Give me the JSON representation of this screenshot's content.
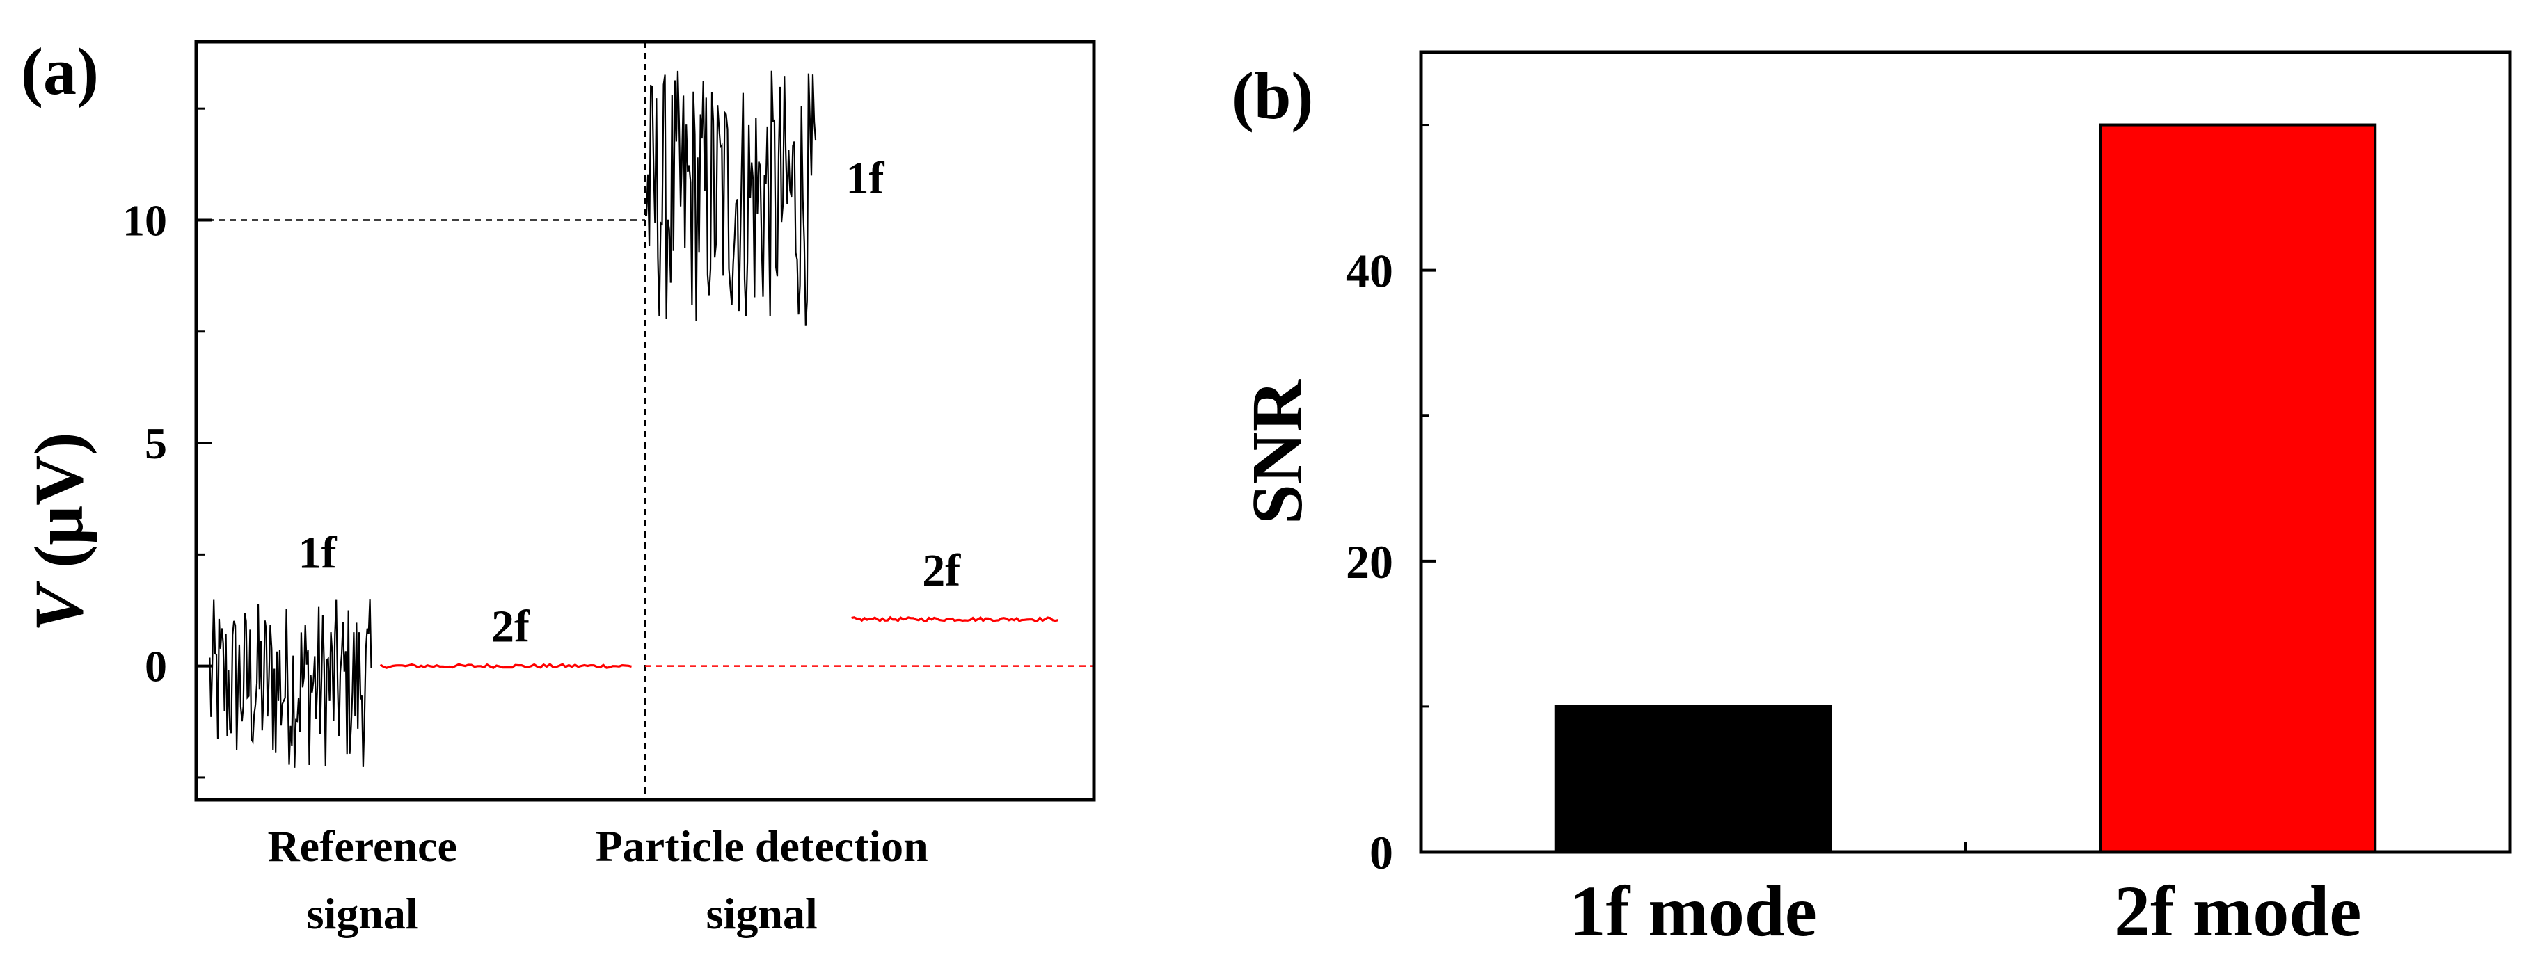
{
  "chart_data": [
    {
      "panel": "(a)",
      "type": "line",
      "ylabel_italic": "V",
      "ylabel_unit": " (μV)",
      "ylim": [
        -3,
        14
      ],
      "yticks": [
        0,
        5,
        10
      ],
      "ytick_labels": [
        "0",
        "5",
        "10"
      ],
      "xlim": [
        0,
        10
      ],
      "x_groups": [
        {
          "lines": [
            "Reference",
            "signal"
          ]
        },
        {
          "lines": [
            "Particle detection",
            "signal"
          ]
        }
      ],
      "series": [
        {
          "name": "1f",
          "color": "#000000",
          "x_range": [
            0.15,
            1.95
          ],
          "mean": -0.4,
          "amplitude": 1.9
        },
        {
          "name": "2f",
          "color": "#ff0000",
          "x_range": [
            2.05,
            4.85
          ],
          "mean": 0.0,
          "amplitude": 0.04
        },
        {
          "name": "1f",
          "color": "#000000",
          "x_range": [
            5.0,
            6.9
          ],
          "mean": 10.5,
          "amplitude": 2.9
        },
        {
          "name": "2f",
          "color": "#ff0000",
          "x_range": [
            7.3,
            9.6
          ],
          "mean": 1.05,
          "amplitude": 0.04
        }
      ],
      "reference_lines": [
        {
          "orientation": "vertical",
          "x": 5.0,
          "color": "#000000"
        },
        {
          "orientation": "horizontal",
          "y": 10,
          "x_range": [
            0,
            5.0
          ],
          "color": "#000000"
        },
        {
          "orientation": "horizontal",
          "y": 0,
          "x_range": [
            5.0,
            10
          ],
          "color": "#ff0000"
        }
      ],
      "annotations": [
        {
          "text": "1f",
          "x": 1.35,
          "y": 2.2
        },
        {
          "text": "2f",
          "x": 3.5,
          "y": 0.55
        },
        {
          "text": "1f",
          "x": 7.45,
          "y": 10.6
        },
        {
          "text": "2f",
          "x": 8.3,
          "y": 1.8
        }
      ]
    },
    {
      "panel": "(b)",
      "type": "bar",
      "categories": [
        "1f mode",
        "2f mode"
      ],
      "values": [
        10,
        50
      ],
      "colors": [
        "#000000",
        "#ff0000"
      ],
      "ylabel": "SNR",
      "ylim": [
        0,
        55
      ],
      "yticks": [
        0,
        20,
        40
      ],
      "ytick_labels": [
        "0",
        "20",
        "40"
      ]
    }
  ]
}
